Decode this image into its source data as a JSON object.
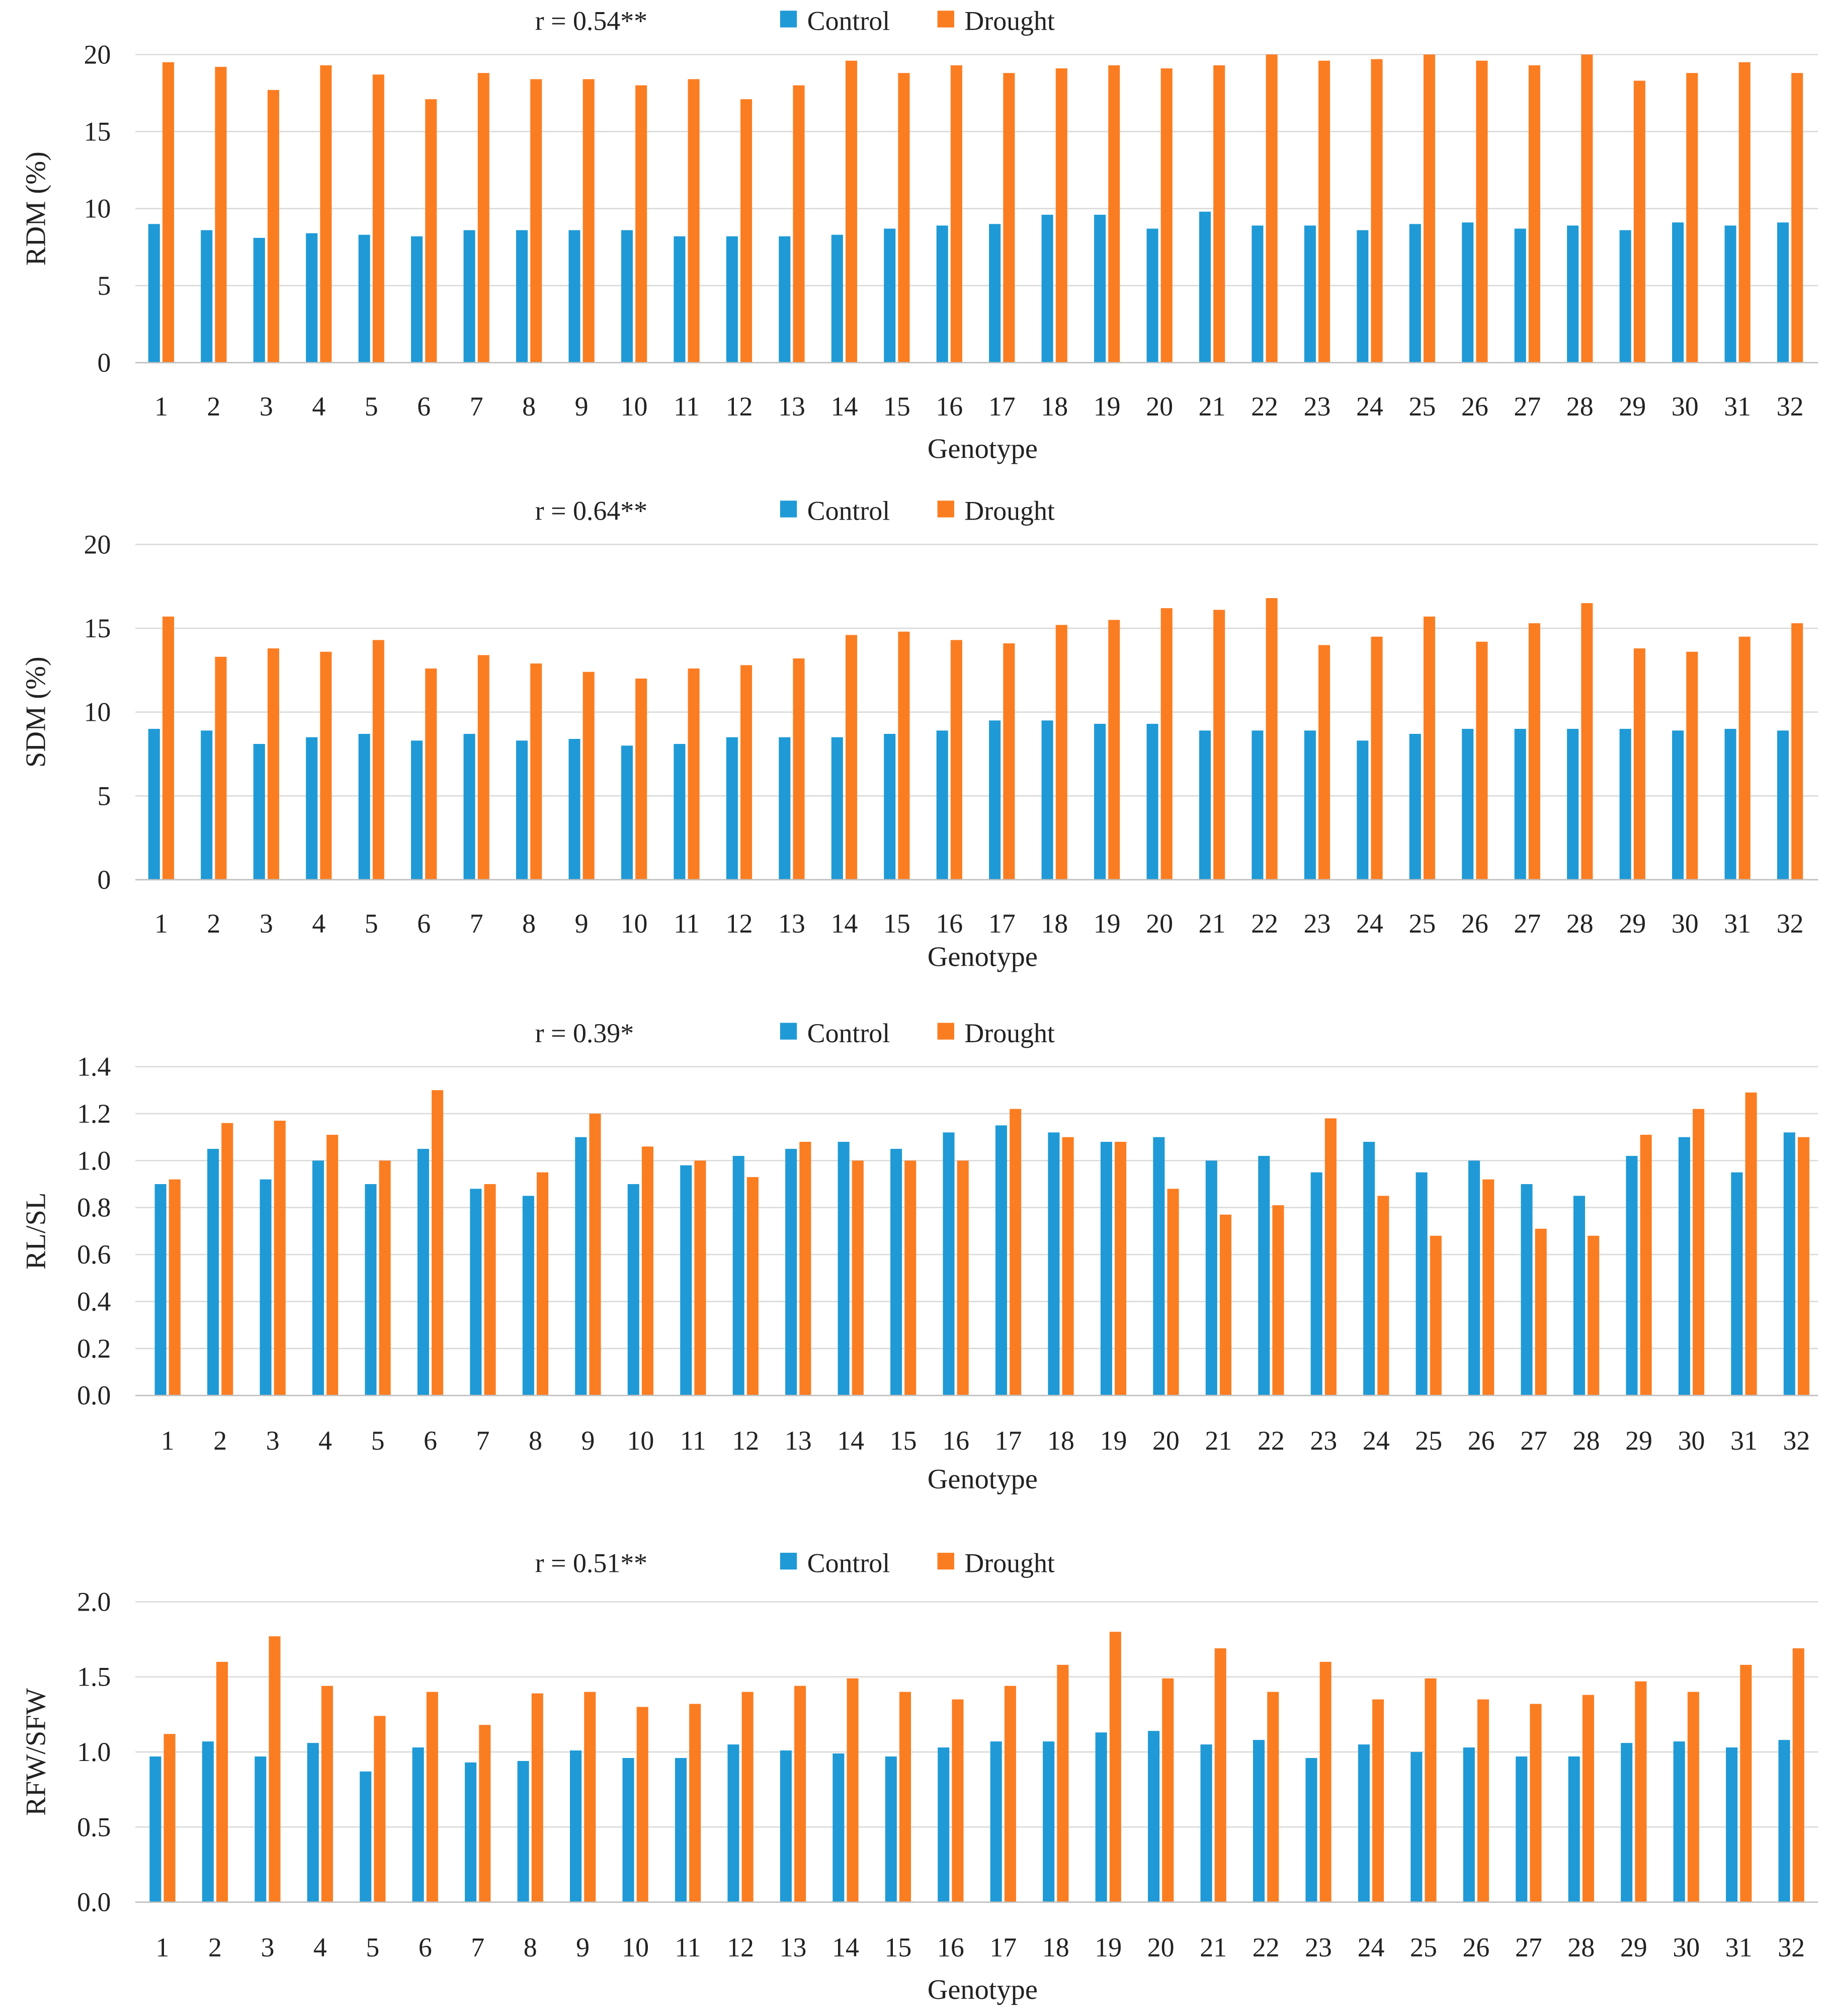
{
  "colors": {
    "control": "#1f9ad6",
    "drought": "#fb7d22"
  },
  "legend": {
    "control": "Control",
    "drought": "Drought"
  },
  "chart_data": [
    {
      "type": "bar",
      "annotation": "r = 0.54**",
      "xlabel": "Genotype",
      "ylabel": "RDM (%)",
      "ylim": [
        0,
        20
      ],
      "yticks": [
        0,
        5,
        10,
        15,
        20
      ],
      "ytick_labels": [
        "0",
        "5",
        "10",
        "15",
        "20"
      ],
      "categories": [
        "1",
        "2",
        "3",
        "4",
        "5",
        "6",
        "7",
        "8",
        "9",
        "10",
        "11",
        "12",
        "13",
        "14",
        "15",
        "16",
        "17",
        "18",
        "19",
        "20",
        "21",
        "22",
        "23",
        "24",
        "25",
        "26",
        "27",
        "28",
        "29",
        "30",
        "31",
        "32"
      ],
      "series": [
        {
          "name": "Control",
          "values": [
            9.0,
            8.6,
            8.1,
            8.4,
            8.3,
            8.2,
            8.6,
            8.6,
            8.6,
            8.6,
            8.2,
            8.2,
            8.2,
            8.3,
            8.7,
            8.9,
            9.0,
            9.6,
            9.6,
            8.7,
            9.8,
            8.9,
            8.9,
            8.6,
            9.0,
            9.1,
            8.7,
            8.9,
            8.6,
            9.1,
            8.9,
            9.1
          ]
        },
        {
          "name": "Drought",
          "values": [
            19.5,
            19.2,
            17.7,
            19.3,
            18.7,
            17.1,
            18.8,
            18.4,
            18.4,
            18.0,
            18.4,
            17.1,
            18.0,
            19.6,
            18.8,
            19.3,
            18.8,
            19.1,
            19.3,
            19.1,
            19.3,
            20.0,
            19.6,
            19.7,
            20.0,
            19.6,
            19.3,
            20.0,
            18.3,
            18.8,
            19.5,
            18.8
          ]
        }
      ],
      "grid": true,
      "legend_position": "top"
    },
    {
      "type": "bar",
      "annotation": "r = 0.64**",
      "xlabel": "Genotype",
      "ylabel": "SDM (%)",
      "ylim": [
        0,
        20
      ],
      "yticks": [
        0,
        5,
        10,
        15,
        20
      ],
      "ytick_labels": [
        "0",
        "5",
        "10",
        "15",
        "20"
      ],
      "categories": [
        "1",
        "2",
        "3",
        "4",
        "5",
        "6",
        "7",
        "8",
        "9",
        "10",
        "11",
        "12",
        "13",
        "14",
        "15",
        "16",
        "17",
        "18",
        "19",
        "20",
        "21",
        "22",
        "23",
        "24",
        "25",
        "26",
        "27",
        "28",
        "29",
        "30",
        "31",
        "32"
      ],
      "series": [
        {
          "name": "Control",
          "values": [
            9.0,
            8.9,
            8.1,
            8.5,
            8.7,
            8.3,
            8.7,
            8.3,
            8.4,
            8.0,
            8.1,
            8.5,
            8.5,
            8.5,
            8.7,
            8.9,
            9.5,
            9.5,
            9.3,
            9.3,
            8.9,
            8.9,
            8.9,
            8.3,
            8.7,
            9.0,
            9.0,
            9.0,
            9.0,
            8.9,
            9.0,
            8.9
          ]
        },
        {
          "name": "Drought",
          "values": [
            15.7,
            13.3,
            13.8,
            13.6,
            14.3,
            12.6,
            13.4,
            12.9,
            12.4,
            12.0,
            12.6,
            12.8,
            13.2,
            14.6,
            14.8,
            14.3,
            14.1,
            15.2,
            15.5,
            16.2,
            16.1,
            16.8,
            14.0,
            14.5,
            15.7,
            14.2,
            15.3,
            16.5,
            13.8,
            13.6,
            14.5,
            15.3
          ]
        }
      ],
      "grid": true,
      "legend_position": "top"
    },
    {
      "type": "bar",
      "annotation": "r = 0.39*",
      "xlabel": "Genotype",
      "ylabel": "RL/SL",
      "ylim": [
        0,
        1.4
      ],
      "yticks": [
        0,
        0.2,
        0.4,
        0.6,
        0.8,
        1.0,
        1.2,
        1.4
      ],
      "ytick_labels": [
        "0.0",
        "0.2",
        "0.4",
        "0.6",
        "0.8",
        "1.0",
        "1.2",
        "1.4"
      ],
      "categories": [
        "1",
        "2",
        "3",
        "4",
        "5",
        "6",
        "7",
        "8",
        "9",
        "10",
        "11",
        "12",
        "13",
        "14",
        "15",
        "16",
        "17",
        "18",
        "19",
        "20",
        "21",
        "22",
        "23",
        "24",
        "25",
        "26",
        "27",
        "28",
        "29",
        "30",
        "31",
        "32"
      ],
      "series": [
        {
          "name": "Control",
          "values": [
            0.9,
            1.05,
            0.92,
            1.0,
            0.9,
            1.05,
            0.88,
            0.85,
            1.1,
            0.9,
            0.98,
            1.02,
            1.05,
            1.08,
            1.05,
            1.12,
            1.15,
            1.12,
            1.08,
            1.1,
            1.0,
            1.02,
            0.95,
            1.08,
            0.95,
            1.0,
            0.9,
            0.85,
            1.02,
            1.1,
            0.95,
            1.12
          ]
        },
        {
          "name": "Drought",
          "values": [
            0.92,
            1.16,
            1.17,
            1.11,
            1.0,
            1.3,
            0.9,
            0.95,
            1.2,
            1.06,
            1.0,
            0.93,
            1.08,
            1.0,
            1.0,
            1.0,
            1.22,
            1.1,
            1.08,
            0.88,
            0.77,
            0.81,
            1.18,
            0.85,
            0.68,
            0.92,
            0.71,
            0.68,
            1.11,
            1.22,
            1.29,
            1.1
          ]
        }
      ],
      "grid": true,
      "legend_position": "top"
    },
    {
      "type": "bar",
      "annotation": "r = 0.51**",
      "xlabel": "Genotype",
      "ylabel": "RFW/SFW",
      "ylim": [
        0,
        2.0
      ],
      "yticks": [
        0,
        0.5,
        1.0,
        1.5,
        2.0
      ],
      "ytick_labels": [
        "0.0",
        "0.5",
        "1.0",
        "1.5",
        "2.0"
      ],
      "categories": [
        "1",
        "2",
        "3",
        "4",
        "5",
        "6",
        "7",
        "8",
        "9",
        "10",
        "11",
        "12",
        "13",
        "14",
        "15",
        "16",
        "17",
        "18",
        "19",
        "20",
        "21",
        "22",
        "23",
        "24",
        "25",
        "26",
        "27",
        "28",
        "29",
        "30",
        "31",
        "32"
      ],
      "series": [
        {
          "name": "Control",
          "values": [
            0.97,
            1.07,
            0.97,
            1.06,
            0.87,
            1.03,
            0.93,
            0.94,
            1.01,
            0.96,
            0.96,
            1.05,
            1.01,
            0.99,
            0.97,
            1.03,
            1.07,
            1.07,
            1.13,
            1.14,
            1.05,
            1.08,
            0.96,
            1.05,
            1.0,
            1.03,
            0.97,
            0.97,
            1.06,
            1.07,
            1.03,
            1.08
          ]
        },
        {
          "name": "Drought",
          "values": [
            1.12,
            1.6,
            1.77,
            1.44,
            1.24,
            1.4,
            1.18,
            1.39,
            1.4,
            1.3,
            1.32,
            1.4,
            1.44,
            1.49,
            1.4,
            1.35,
            1.44,
            1.58,
            1.8,
            1.49,
            1.69,
            1.4,
            1.6,
            1.35,
            1.49,
            1.35,
            1.32,
            1.38,
            1.47,
            1.4,
            1.58,
            1.69
          ]
        }
      ],
      "grid": true,
      "legend_position": "top"
    }
  ]
}
